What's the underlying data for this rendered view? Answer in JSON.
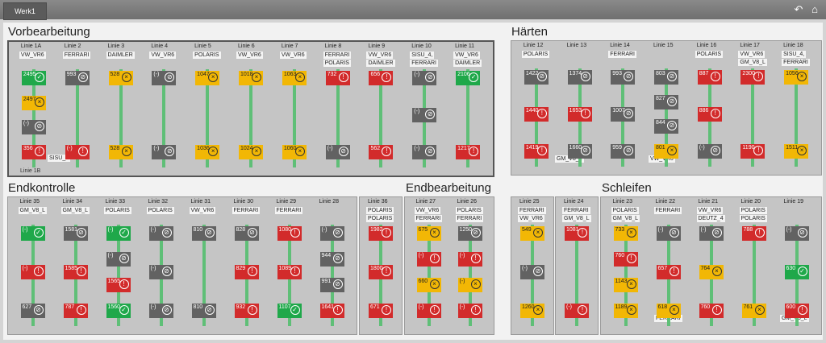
{
  "app": {
    "tab_label": "Werk1"
  },
  "icons": {
    "back": "back-arrow-icon",
    "home": "home-icon"
  },
  "sections": {
    "vorbearbeitung": {
      "title": "Vorbearbeitung",
      "footer": "Linie 1B",
      "lines": [
        {
          "label": "Linie 1A",
          "types": [
            "VW_VR6"
          ],
          "boxes": [
            {
              "v": "2495",
              "s": "grn"
            },
            {
              "v": "2497",
              "s": "yel"
            },
            {
              "v": "(-)",
              "s": "gry"
            },
            {
              "v": "356",
              "s": "red"
            }
          ]
        },
        {
          "label": "Linie 2",
          "types": [
            "FERRARI"
          ],
          "boxes": [
            {
              "v": "993",
              "s": "gry"
            },
            {
              "v": "(-)",
              "s": "red"
            }
          ]
        },
        {
          "label": "Linie 3",
          "types": [
            "DAIMLER"
          ],
          "boxes": [
            {
              "v": "528",
              "s": "yel"
            },
            {
              "v": "528",
              "s": "yel"
            }
          ]
        },
        {
          "label": "Linie 4",
          "types": [
            "VW_VR6"
          ],
          "boxes": [
            {
              "v": "(-)",
              "s": "gry"
            },
            {
              "v": "(-)",
              "s": "gry"
            }
          ]
        },
        {
          "label": "Linie 5",
          "types": [
            "POLARIS"
          ],
          "boxes": [
            {
              "v": "1047",
              "s": "yel"
            },
            {
              "v": "1036",
              "s": "yel"
            }
          ]
        },
        {
          "label": "Linie 6",
          "types": [
            "VW_VR6"
          ],
          "boxes": [
            {
              "v": "1018",
              "s": "yel"
            },
            {
              "v": "1024",
              "s": "yel"
            }
          ]
        },
        {
          "label": "Linie 7",
          "types": [
            "VW_VR6"
          ],
          "boxes": [
            {
              "v": "1063",
              "s": "yel"
            },
            {
              "v": "1060",
              "s": "yel"
            }
          ]
        },
        {
          "label": "Linie 8",
          "types": [
            "FERRARI",
            "POLARIS"
          ],
          "boxes": [
            {
              "v": "732",
              "s": "red"
            },
            {
              "v": "(-)",
              "s": "gry"
            }
          ]
        },
        {
          "label": "Linie 9",
          "types": [
            "VW_VR6",
            "DAIMLER"
          ],
          "boxes": [
            {
              "v": "656",
              "s": "red"
            },
            {
              "v": "562",
              "s": "red"
            }
          ]
        },
        {
          "label": "Linie 10",
          "types": [
            "SISU_4,",
            "FERRARI"
          ],
          "boxes": [
            {
              "v": "(-)",
              "s": "gry"
            },
            {
              "v": "(-)",
              "s": "gry"
            },
            {
              "v": "(-)",
              "s": "gry"
            }
          ]
        },
        {
          "label": "Linie 11",
          "types": [
            "VW_VR6",
            "DAIMLER"
          ],
          "boxes": [
            {
              "v": "2106",
              "s": "grn"
            },
            {
              "v": "1217",
              "s": "red"
            }
          ]
        }
      ],
      "extra_type": "SISU_4"
    },
    "haerten": {
      "title": "Härten",
      "lines": [
        {
          "label": "Linie 12",
          "types": [
            "POLARIS"
          ],
          "boxes": [
            {
              "v": "1422",
              "s": "gry"
            },
            {
              "v": "1440",
              "s": "red"
            },
            {
              "v": "1419",
              "s": "red"
            }
          ]
        },
        {
          "label": "Linie 13",
          "types": [
            ""
          ],
          "boxes": [
            {
              "v": "1374",
              "s": "gry"
            },
            {
              "v": "1653",
              "s": "red"
            },
            {
              "v": "1660",
              "s": "gry"
            }
          ]
        },
        {
          "label": "Linie 14",
          "types": [
            "FERRARI"
          ],
          "boxes": [
            {
              "v": "993",
              "s": "gry"
            },
            {
              "v": "1007",
              "s": "gry"
            },
            {
              "v": "959",
              "s": "gry"
            }
          ]
        },
        {
          "label": "Linie 15",
          "types": [
            ""
          ],
          "boxes": [
            {
              "v": "803",
              "s": "gry"
            },
            {
              "v": "827",
              "s": "gry"
            },
            {
              "v": "844",
              "s": "gry"
            },
            {
              "v": "801",
              "s": "yel"
            }
          ]
        },
        {
          "label": "Linie 16",
          "types": [
            "POLARIS"
          ],
          "boxes": [
            {
              "v": "887",
              "s": "red"
            },
            {
              "v": "886",
              "s": "red"
            },
            {
              "v": "(-)",
              "s": "gry"
            }
          ]
        },
        {
          "label": "Linie 17",
          "types": [
            "VW_VR6",
            "GM_V8_L"
          ],
          "boxes": [
            {
              "v": "2300",
              "s": "red"
            },
            {
              "v": "1190",
              "s": "red"
            }
          ]
        },
        {
          "label": "Linie 18",
          "types": [
            "SISU_4,",
            "FERRARI"
          ],
          "boxes": [
            {
              "v": "1056",
              "s": "yel"
            },
            {
              "v": "1511",
              "s": "yel"
            }
          ]
        }
      ],
      "extra_types": [
        "GM_V8_L",
        "VW_VR6"
      ]
    },
    "endkontrolle": {
      "title": "Endkontrolle",
      "lines": [
        {
          "label": "Linie 35",
          "types": [
            "GM_V8_L"
          ],
          "boxes": [
            {
              "v": "(-)",
              "s": "grn"
            },
            {
              "v": "(-)",
              "s": "red"
            },
            {
              "v": "627",
              "s": "gry"
            }
          ]
        },
        {
          "label": "Linie 34",
          "types": [
            "GM_V8_L"
          ],
          "boxes": [
            {
              "v": "1581",
              "s": "gry"
            },
            {
              "v": "1585",
              "s": "red"
            },
            {
              "v": "787",
              "s": "red"
            }
          ]
        },
        {
          "label": "Linie 33",
          "types": [
            "POLARIS"
          ],
          "boxes": [
            {
              "v": "(-)",
              "s": "grn"
            },
            {
              "v": "(-)",
              "s": "gry"
            },
            {
              "v": "1565",
              "s": "red"
            },
            {
              "v": "1560",
              "s": "grn"
            }
          ]
        },
        {
          "label": "Linie 32",
          "types": [
            "POLARIS"
          ],
          "boxes": [
            {
              "v": "(-)",
              "s": "gry"
            },
            {
              "v": "(-)",
              "s": "gry"
            },
            {
              "v": "(-)",
              "s": "gry"
            }
          ]
        },
        {
          "label": "Linie 31",
          "types": [
            "VW_VR6"
          ],
          "boxes": [
            {
              "v": "810",
              "s": "gry"
            },
            {
              "v": "810",
              "s": "gry"
            }
          ]
        },
        {
          "label": "Linie 30",
          "types": [
            "FERRARI"
          ],
          "boxes": [
            {
              "v": "828",
              "s": "gry"
            },
            {
              "v": "829",
              "s": "red"
            },
            {
              "v": "932",
              "s": "red"
            }
          ]
        },
        {
          "label": "Linie 29",
          "types": [
            "FERRARI"
          ],
          "boxes": [
            {
              "v": "1080",
              "s": "red"
            },
            {
              "v": "1089",
              "s": "red"
            },
            {
              "v": "1107",
              "s": "grn"
            }
          ]
        },
        {
          "label": "Linie 28",
          "types": [
            ""
          ],
          "boxes": [
            {
              "v": "(-)",
              "s": "gry"
            },
            {
              "v": "944",
              "s": "gry"
            },
            {
              "v": "991",
              "s": "gry"
            },
            {
              "v": "1641",
              "s": "red"
            }
          ]
        }
      ]
    },
    "linie36": {
      "lines": [
        {
          "label": "Linie 36",
          "types": [
            "POLARIS",
            "POLARIS"
          ],
          "boxes": [
            {
              "v": "1982",
              "s": "red"
            },
            {
              "v": "1800",
              "s": "red"
            },
            {
              "v": "671",
              "s": "red"
            }
          ]
        }
      ]
    },
    "endbearbeitung": {
      "title": "Endbearbeitung",
      "lines": [
        {
          "label": "Linie 27",
          "types": [
            "VW_VR6",
            "FERRARI"
          ],
          "boxes": [
            {
              "v": "675",
              "s": "yel"
            },
            {
              "v": "(-)",
              "s": "red"
            },
            {
              "v": "660",
              "s": "yel"
            },
            {
              "v": "(-)",
              "s": "red"
            }
          ]
        },
        {
          "label": "Linie 26",
          "types": [
            "POLARIS",
            "FERRARI"
          ],
          "boxes": [
            {
              "v": "1250",
              "s": "gry"
            },
            {
              "v": "(-)",
              "s": "red"
            },
            {
              "v": "(-)",
              "s": "yel"
            },
            {
              "v": "(-)",
              "s": "red"
            }
          ]
        }
      ]
    },
    "schleifen": {
      "title": "Schleifen",
      "lines_a": [
        {
          "label": "Linie 25",
          "types": [
            "FERRARI",
            "VW_VR6"
          ],
          "boxes": [
            {
              "v": "549",
              "s": "yel"
            },
            {
              "v": "(-)",
              "s": "gry"
            },
            {
              "v": "1260",
              "s": "yel"
            }
          ]
        },
        {
          "label": "Linie 24",
          "types": [
            "FERRARI",
            "GM_V8_L"
          ],
          "boxes": [
            {
              "v": "1081",
              "s": "red"
            },
            {
              "v": "(-)",
              "s": "red"
            }
          ]
        }
      ],
      "lines_b": [
        {
          "label": "Linie 23",
          "types": [
            "POLARIS",
            "GM_V8_L"
          ],
          "boxes": [
            {
              "v": "733",
              "s": "yel"
            },
            {
              "v": "760",
              "s": "red"
            },
            {
              "v": "1143",
              "s": "yel"
            },
            {
              "v": "1189",
              "s": "yel"
            }
          ]
        },
        {
          "label": "Linie 22",
          "types": [
            "FERRARI"
          ],
          "boxes": [
            {
              "v": "(-)",
              "s": "gry"
            },
            {
              "v": "657",
              "s": "red"
            },
            {
              "v": "618",
              "s": "yel"
            }
          ]
        },
        {
          "label": "Linie 21",
          "types": [
            "VW_VR6",
            "DEUTZ_4"
          ],
          "boxes": [
            {
              "v": "(-)",
              "s": "gry"
            },
            {
              "v": "764",
              "s": "yel"
            },
            {
              "v": "760",
              "s": "red"
            }
          ]
        },
        {
          "label": "Linie 20",
          "types": [
            "POLARIS",
            "POLARIS"
          ],
          "boxes": [
            {
              "v": "788",
              "s": "red"
            },
            {
              "v": "761",
              "s": "yel"
            }
          ]
        },
        {
          "label": "Linie 19",
          "types": [
            ""
          ],
          "boxes": [
            {
              "v": "(-)",
              "s": "gry"
            },
            {
              "v": "630",
              "s": "grn"
            },
            {
              "v": "600",
              "s": "red"
            }
          ]
        }
      ],
      "extra_types": [
        "FERRARI",
        "GM_V8_L"
      ]
    }
  },
  "colors": {
    "red": "#d22b2b",
    "yellow": "#f2b705",
    "green": "#1fa84a",
    "gray": "#626262",
    "stem": "#5fbf77"
  }
}
